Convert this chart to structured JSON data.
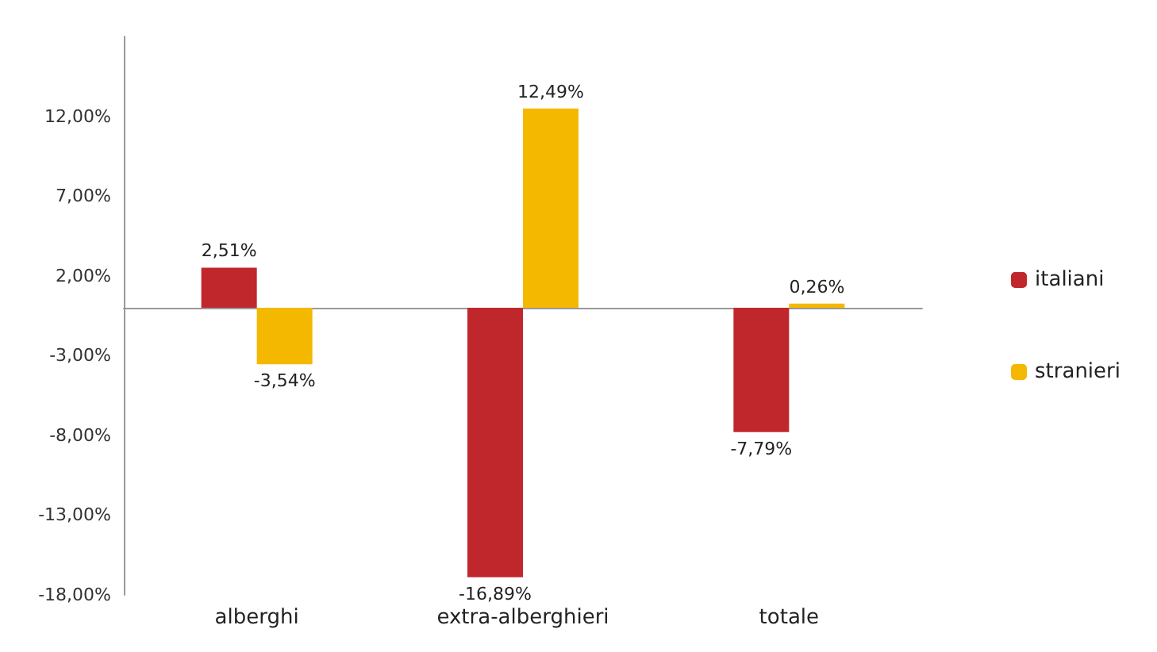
{
  "chart_data": {
    "type": "bar",
    "categories": [
      "alberghi",
      "extra-alberghieri",
      "totale"
    ],
    "series": [
      {
        "name": "italiani",
        "color": "#c0272d",
        "values": [
          2.51,
          -16.89,
          -7.79
        ],
        "value_labels": [
          "2,51%",
          "-16,89%",
          "-7,79%"
        ]
      },
      {
        "name": "stranieri",
        "color": "#f5b800",
        "values": [
          -3.54,
          12.49,
          0.26
        ],
        "value_labels": [
          "-3,54%",
          "12,49%",
          "0,26%"
        ]
      }
    ],
    "ylim": [
      -18,
      17
    ],
    "yticks": [
      {
        "value": -18,
        "label": "-18,00%"
      },
      {
        "value": -13,
        "label": "-13,00%"
      },
      {
        "value": -8,
        "label": "-8,00%"
      },
      {
        "value": -3,
        "label": "-3,00%"
      },
      {
        "value": 2,
        "label": "2,00%"
      },
      {
        "value": 7,
        "label": "7,00%"
      },
      {
        "value": 12,
        "label": "12,00%"
      }
    ],
    "grid": false,
    "legend": "right"
  }
}
